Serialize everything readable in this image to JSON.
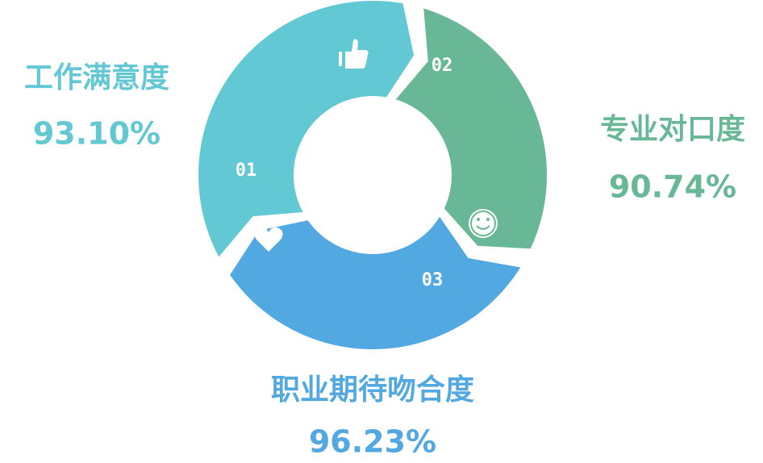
{
  "items": [
    {
      "number": "01",
      "label": "工作满意度",
      "value": "93.10%"
    },
    {
      "number": "02",
      "label": "专业对口度",
      "value": "90.74%"
    },
    {
      "number": "03",
      "label": "职业期待吻合度",
      "value": "96.23%"
    }
  ]
}
